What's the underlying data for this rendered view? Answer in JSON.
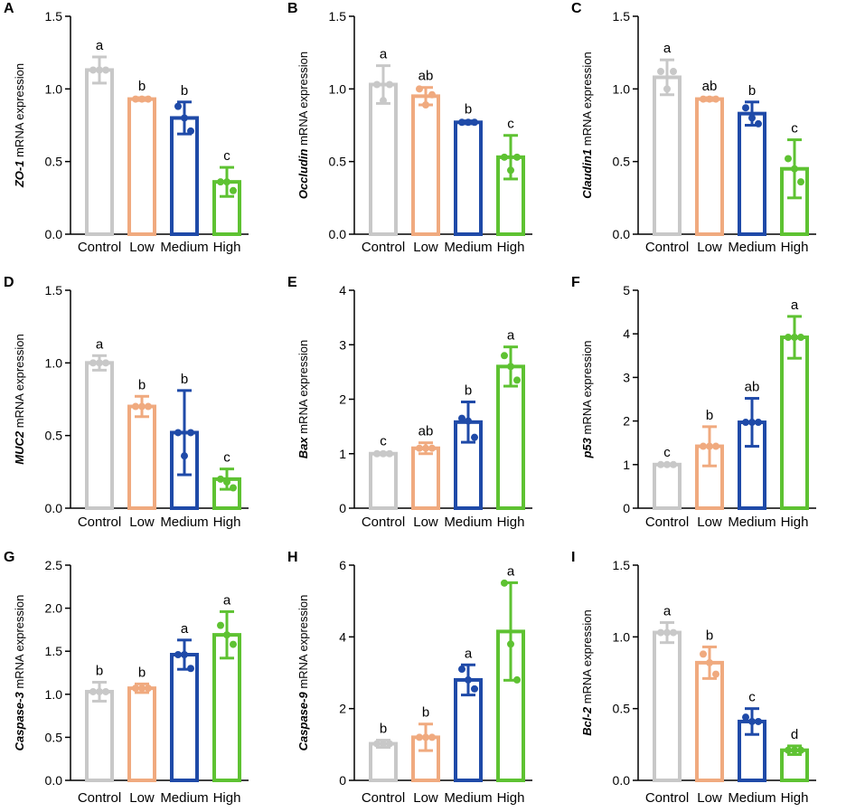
{
  "figure": {
    "colors": {
      "Control": "#c8c8c8",
      "Low": "#f0aa7f",
      "Medium": "#1f4aa8",
      "High": "#5ec232"
    }
  },
  "chart_data": [
    {
      "type": "bar",
      "panel": "A",
      "gene": "ZO-1",
      "ylabel_suffix": " mRNA expression",
      "categories": [
        "Control",
        "Low",
        "Medium",
        "High"
      ],
      "values": [
        1.13,
        0.93,
        0.8,
        0.36
      ],
      "error": [
        0.09,
        0.01,
        0.11,
        0.1
      ],
      "points": [
        [
          1.13,
          1.13,
          1.13
        ],
        [
          0.93,
          0.93,
          0.93
        ],
        [
          0.88,
          0.8,
          0.71
        ],
        [
          0.36,
          0.36,
          0.3
        ]
      ],
      "significance": [
        "a",
        "b",
        "b",
        "c"
      ],
      "ylim": [
        0,
        1.5
      ],
      "yticks": [
        "0.0",
        "0.5",
        "1.0",
        "1.5"
      ],
      "ytick_values": [
        0,
        0.5,
        1.0,
        1.5
      ]
    },
    {
      "type": "bar",
      "panel": "B",
      "gene": "Occludin",
      "ylabel_suffix": " mRNA expression",
      "categories": [
        "Control",
        "Low",
        "Medium",
        "High"
      ],
      "values": [
        1.03,
        0.95,
        0.77,
        0.53
      ],
      "error": [
        0.13,
        0.06,
        0.01,
        0.15
      ],
      "points": [
        [
          1.03,
          0.92,
          1.03
        ],
        [
          1.0,
          0.89,
          0.96
        ],
        [
          0.77,
          0.77,
          0.77
        ],
        [
          0.53,
          0.44,
          0.53
        ]
      ],
      "significance": [
        "a",
        "ab",
        "b",
        "c"
      ],
      "ylim": [
        0,
        1.5
      ],
      "yticks": [
        "0.0",
        "0.5",
        "1.0",
        "1.5"
      ],
      "ytick_values": [
        0,
        0.5,
        1.0,
        1.5
      ]
    },
    {
      "type": "bar",
      "panel": "C",
      "gene": "Claudin1",
      "ylabel_suffix": " mRNA expression",
      "categories": [
        "Control",
        "Low",
        "Medium",
        "High"
      ],
      "values": [
        1.08,
        0.93,
        0.83,
        0.45
      ],
      "error": [
        0.12,
        0.01,
        0.08,
        0.2
      ],
      "points": [
        [
          1.12,
          1.0,
          1.12
        ],
        [
          0.93,
          0.93,
          0.93
        ],
        [
          0.87,
          0.8,
          0.76
        ],
        [
          0.52,
          0.45,
          0.36
        ]
      ],
      "significance": [
        "a",
        "ab",
        "b",
        "c"
      ],
      "ylim": [
        0,
        1.5
      ],
      "yticks": [
        "0.0",
        "0.5",
        "1.0",
        "1.5"
      ],
      "ytick_values": [
        0,
        0.5,
        1.0,
        1.5
      ]
    },
    {
      "type": "bar",
      "panel": "D",
      "gene": "MUC2",
      "ylabel_suffix": " mRNA expression",
      "categories": [
        "Control",
        "Low",
        "Medium",
        "High"
      ],
      "values": [
        1.0,
        0.7,
        0.52,
        0.2
      ],
      "error": [
        0.05,
        0.07,
        0.29,
        0.07
      ],
      "points": [
        [
          1.0,
          1.0,
          1.0
        ],
        [
          0.7,
          0.7,
          0.7
        ],
        [
          0.52,
          0.36,
          0.52
        ],
        [
          0.2,
          0.18,
          0.14
        ]
      ],
      "significance": [
        "a",
        "b",
        "b",
        "c"
      ],
      "ylim": [
        0,
        1.5
      ],
      "yticks": [
        "0.0",
        "0.5",
        "1.0",
        "1.5"
      ],
      "ytick_values": [
        0,
        0.5,
        1.0,
        1.5
      ]
    },
    {
      "type": "bar",
      "panel": "E",
      "gene": "Bax",
      "ylabel_suffix": " mRNA expression",
      "categories": [
        "Control",
        "Low",
        "Medium",
        "High"
      ],
      "values": [
        1.0,
        1.1,
        1.58,
        2.6
      ],
      "error": [
        0.02,
        0.1,
        0.37,
        0.36
      ],
      "points": [
        [
          1.0,
          1.0,
          1.0
        ],
        [
          1.1,
          1.1,
          1.1
        ],
        [
          1.65,
          1.6,
          1.3
        ],
        [
          2.8,
          2.6,
          2.35
        ]
      ],
      "significance": [
        "c",
        "ab",
        "b",
        "a"
      ],
      "ylim": [
        0,
        4
      ],
      "yticks": [
        "0",
        "1",
        "2",
        "3",
        "4"
      ],
      "ytick_values": [
        0,
        1,
        2,
        3,
        4
      ]
    },
    {
      "type": "bar",
      "panel": "F",
      "gene": "p53",
      "ylabel_suffix": " mRNA expression",
      "categories": [
        "Control",
        "Low",
        "Medium",
        "High"
      ],
      "values": [
        1.0,
        1.42,
        1.97,
        3.92
      ],
      "error": [
        0.02,
        0.45,
        0.55,
        0.48
      ],
      "points": [
        [
          1.0,
          1.0,
          1.0
        ],
        [
          1.42,
          1.42,
          1.42
        ],
        [
          1.97,
          1.97,
          1.97
        ],
        [
          3.92,
          3.92,
          3.92
        ]
      ],
      "significance": [
        "c",
        "b",
        "ab",
        "a"
      ],
      "ylim": [
        0,
        5
      ],
      "yticks": [
        "0",
        "1",
        "2",
        "3",
        "4",
        "5"
      ],
      "ytick_values": [
        0,
        1,
        2,
        3,
        4,
        5
      ]
    },
    {
      "type": "bar",
      "panel": "G",
      "gene": "Caspase-3",
      "ylabel_suffix": " mRNA expression",
      "categories": [
        "Control",
        "Low",
        "Medium",
        "High"
      ],
      "values": [
        1.03,
        1.07,
        1.46,
        1.69
      ],
      "error": [
        0.11,
        0.05,
        0.17,
        0.27
      ],
      "points": [
        [
          1.03,
          1.03,
          1.03
        ],
        [
          1.07,
          1.07,
          1.07
        ],
        [
          1.46,
          1.46,
          1.3
        ],
        [
          1.8,
          1.69,
          1.58
        ]
      ],
      "significance": [
        "b",
        "b",
        "a",
        "a"
      ],
      "ylim": [
        0,
        2.5
      ],
      "yticks": [
        "0.0",
        "0.5",
        "1.0",
        "1.5",
        "2.0",
        "2.5"
      ],
      "ytick_values": [
        0,
        0.5,
        1.0,
        1.5,
        2.0,
        2.5
      ]
    },
    {
      "type": "bar",
      "panel": "H",
      "gene": "Caspase-9",
      "ylabel_suffix": " mRNA expression",
      "categories": [
        "Control",
        "Low",
        "Medium",
        "High"
      ],
      "values": [
        1.02,
        1.2,
        2.8,
        4.15
      ],
      "error": [
        0.1,
        0.37,
        0.42,
        1.36
      ],
      "points": [
        [
          1.02,
          1.02,
          1.02
        ],
        [
          1.2,
          1.2,
          1.2
        ],
        [
          3.1,
          2.8,
          2.55
        ],
        [
          5.5,
          3.8,
          2.8
        ]
      ],
      "significance": [
        "b",
        "b",
        "a",
        "a"
      ],
      "ylim": [
        0,
        6
      ],
      "yticks": [
        "0",
        "2",
        "4",
        "6"
      ],
      "ytick_values": [
        0,
        2,
        4,
        6
      ]
    },
    {
      "type": "bar",
      "panel": "I",
      "gene": "Bcl-2",
      "ylabel_suffix": " mRNA expression",
      "categories": [
        "Control",
        "Low",
        "Medium",
        "High"
      ],
      "values": [
        1.03,
        0.82,
        0.41,
        0.21
      ],
      "error": [
        0.07,
        0.11,
        0.09,
        0.03
      ],
      "points": [
        [
          1.03,
          1.03,
          1.03
        ],
        [
          0.88,
          0.82,
          0.74
        ],
        [
          0.44,
          0.41,
          0.41
        ],
        [
          0.21,
          0.21,
          0.21
        ]
      ],
      "significance": [
        "a",
        "b",
        "c",
        "d"
      ],
      "ylim": [
        0,
        1.5
      ],
      "yticks": [
        "0.0",
        "0.5",
        "1.0",
        "1.5"
      ],
      "ytick_values": [
        0,
        0.5,
        1.0,
        1.5
      ]
    }
  ]
}
